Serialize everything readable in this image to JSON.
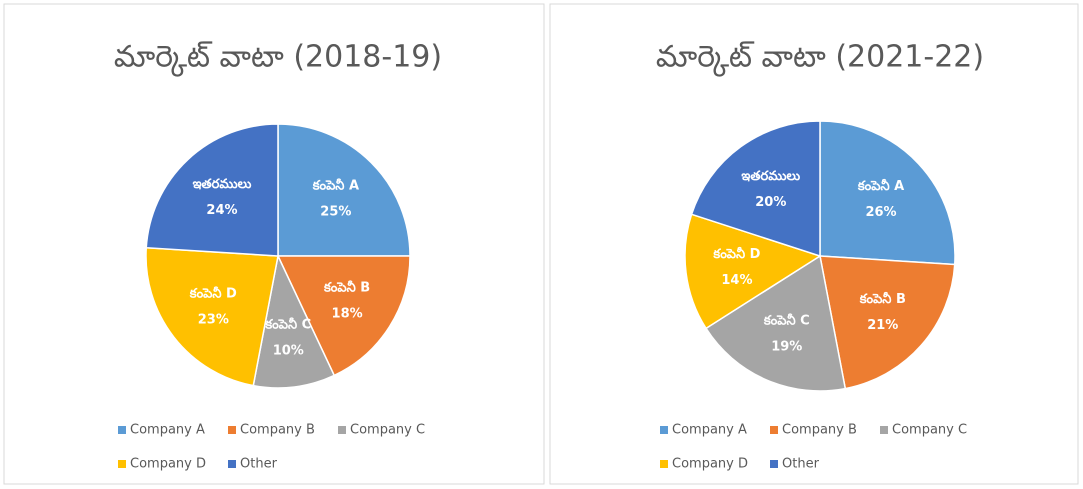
{
  "chart_data": [
    {
      "type": "pie",
      "title": "మార్కెట్ వాటా (2018-19)",
      "categories": [
        "Company A",
        "Company B",
        "Company C",
        "Company D",
        "Other"
      ],
      "slice_labels": [
        "కంపెనీ A",
        "కంపెనీ B",
        "కంపెనీ C",
        "కంపెనీ D",
        "ఇతరములు"
      ],
      "values": [
        25,
        18,
        10,
        23,
        24
      ],
      "value_labels": [
        "25%",
        "18%",
        "10%",
        "23%",
        "24%"
      ],
      "colors": [
        "#5b9bd5",
        "#ed7d31",
        "#a5a5a5",
        "#ffc000",
        "#4472c4"
      ],
      "legend": "bottom"
    },
    {
      "type": "pie",
      "title": "మార్కెట్ వాటా (2021-22)",
      "categories": [
        "Company A",
        "Company B",
        "Company C",
        "Company D",
        "Other"
      ],
      "slice_labels": [
        "కంపెనీ A",
        "కంపెనీ B",
        "కంపెనీ C",
        "కంపెనీ D",
        "ఇతరములు"
      ],
      "values": [
        26,
        21,
        19,
        14,
        20
      ],
      "value_labels": [
        "26%",
        "21%",
        "19%",
        "14%",
        "20%"
      ],
      "colors": [
        "#5b9bd5",
        "#ed7d31",
        "#a5a5a5",
        "#ffc000",
        "#4472c4"
      ],
      "legend": "bottom"
    }
  ]
}
